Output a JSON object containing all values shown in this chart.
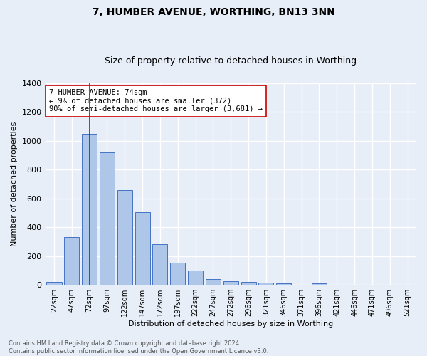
{
  "title1": "7, HUMBER AVENUE, WORTHING, BN13 3NN",
  "title2": "Size of property relative to detached houses in Worthing",
  "xlabel": "Distribution of detached houses by size in Worthing",
  "ylabel": "Number of detached properties",
  "categories": [
    "22sqm",
    "47sqm",
    "72sqm",
    "97sqm",
    "122sqm",
    "147sqm",
    "172sqm",
    "197sqm",
    "222sqm",
    "247sqm",
    "272sqm",
    "296sqm",
    "321sqm",
    "346sqm",
    "371sqm",
    "396sqm",
    "421sqm",
    "446sqm",
    "471sqm",
    "496sqm",
    "521sqm"
  ],
  "values": [
    20,
    330,
    1050,
    920,
    660,
    505,
    280,
    155,
    100,
    40,
    25,
    20,
    15,
    10,
    0,
    12,
    0,
    0,
    0,
    0,
    0
  ],
  "bar_color": "#aec6e8",
  "bar_edge_color": "#4472c4",
  "property_line_x": 2,
  "property_line_color": "#cc0000",
  "annotation_line1": "7 HUMBER AVENUE: 74sqm",
  "annotation_line2": "← 9% of detached houses are smaller (372)",
  "annotation_line3": "90% of semi-detached houses are larger (3,681) →",
  "annotation_box_color": "#ffffff",
  "annotation_box_edge_color": "#cc0000",
  "ylim": [
    0,
    1400
  ],
  "yticks": [
    0,
    200,
    400,
    600,
    800,
    1000,
    1200,
    1400
  ],
  "footer_text": "Contains HM Land Registry data © Crown copyright and database right 2024.\nContains public sector information licensed under the Open Government Licence v3.0.",
  "background_color": "#e8eef8",
  "grid_color": "#ffffff",
  "title1_fontsize": 10,
  "title2_fontsize": 9,
  "bar_fontsize": 7,
  "annotation_fontsize": 7.5,
  "axis_fontsize": 8,
  "footer_fontsize": 6
}
